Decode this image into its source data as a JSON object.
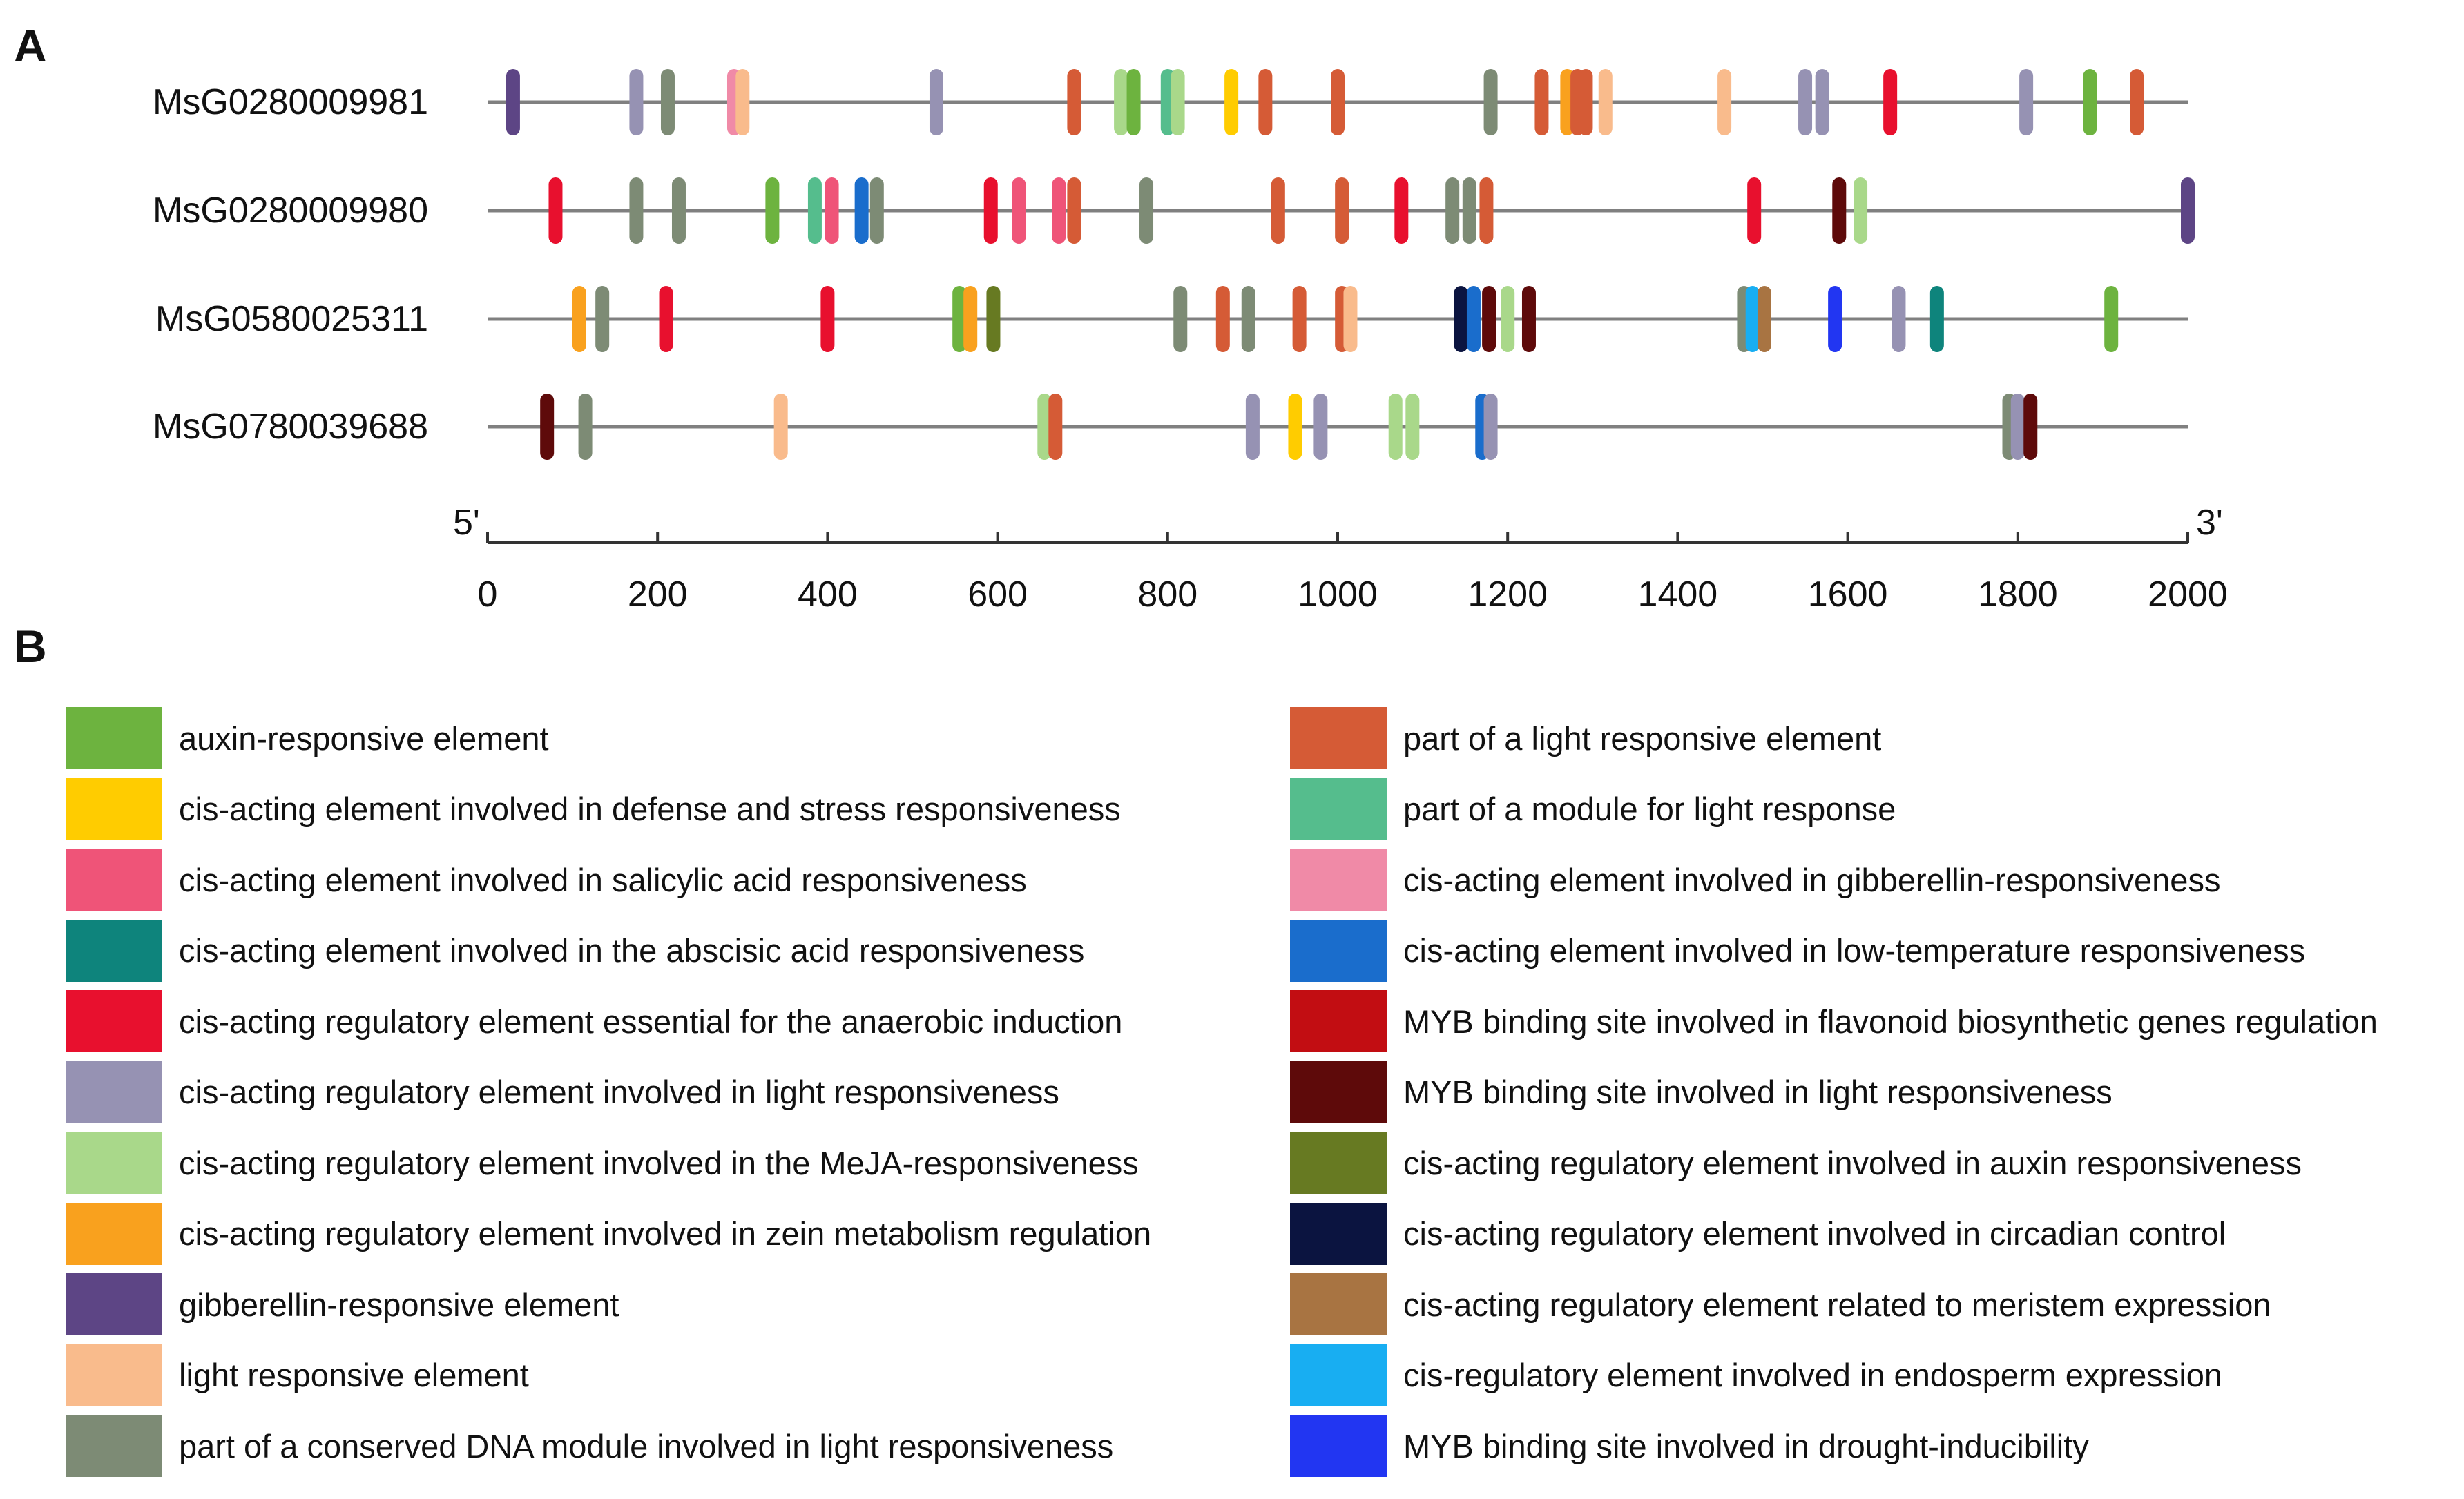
{
  "panel_a_label": "A",
  "panel_b_label": "B",
  "chart_data": {
    "type": "feature-map",
    "title": "",
    "x_axis": {
      "start_label": "5'",
      "end_label": "3'",
      "range": [
        0,
        2000
      ],
      "ticks": [
        0,
        200,
        400,
        600,
        800,
        1000,
        1200,
        1400,
        1600,
        1800,
        2000
      ]
    },
    "element_types": [
      {
        "id": "auxin",
        "label": "auxin-responsive element",
        "color": "#6db33f"
      },
      {
        "id": "defense",
        "label": "cis-acting element involved in defense and stress responsiveness",
        "color": "#ffcc00"
      },
      {
        "id": "salicylic",
        "label": "cis-acting element involved in salicylic acid responsiveness",
        "color": "#ef5478"
      },
      {
        "id": "aba",
        "label": "cis-acting element involved in the abscisic acid responsiveness",
        "color": "#0e847c"
      },
      {
        "id": "anaerobic",
        "label": "cis-acting regulatory element essential for the anaerobic induction",
        "color": "#e8102e"
      },
      {
        "id": "light_reg",
        "label": "cis-acting regulatory element involved in light responsiveness",
        "color": "#9692b3"
      },
      {
        "id": "meja",
        "label": "cis-acting regulatory element involved in the MeJA-responsiveness",
        "color": "#a9d88a"
      },
      {
        "id": "zein",
        "label": "cis-acting regulatory element involved in zein metabolism regulation",
        "color": "#f9a11e"
      },
      {
        "id": "gib_element",
        "label": "gibberellin-responsive element",
        "color": "#5d4585"
      },
      {
        "id": "light_element",
        "label": "light responsive element",
        "color": "#f9bb8c"
      },
      {
        "id": "conserved_dna",
        "label": "part of a conserved DNA module involved in light responsiveness",
        "color": "#7d8b75"
      },
      {
        "id": "part_light",
        "label": "part of a light responsive element",
        "color": "#d55b36"
      },
      {
        "id": "module_light",
        "label": "part of a module for light response",
        "color": "#55bd8d"
      },
      {
        "id": "gib_cis",
        "label": "cis-acting element involved in gibberellin-responsiveness",
        "color": "#f08aa7"
      },
      {
        "id": "lowtemp",
        "label": "cis-acting element involved in low-temperature responsiveness",
        "color": "#1a6dcc"
      },
      {
        "id": "myb_flav",
        "label": "MYB binding site involved in flavonoid biosynthetic genes regulation",
        "color": "#c20d12"
      },
      {
        "id": "myb_light",
        "label": "MYB binding site involved in light responsiveness",
        "color": "#5e0a0a"
      },
      {
        "id": "auxin_reg",
        "label": "cis-acting regulatory element involved in auxin responsiveness",
        "color": "#677a22"
      },
      {
        "id": "circadian",
        "label": "cis-acting regulatory element involved in circadian control",
        "color": "#0b1440"
      },
      {
        "id": "meristem",
        "label": "cis-acting regulatory element related to meristem expression",
        "color": "#a87442"
      },
      {
        "id": "endosperm",
        "label": "cis-regulatory element involved in endosperm expression",
        "color": "#18aef2"
      },
      {
        "id": "myb_drought",
        "label": "MYB binding site involved in drought-inducibility",
        "color": "#2236f2"
      }
    ],
    "genes": [
      {
        "name": "MsG0280009981",
        "length": 2000,
        "elements": [
          {
            "pos": 30,
            "type": "gib_element"
          },
          {
            "pos": 175,
            "type": "light_reg"
          },
          {
            "pos": 212,
            "type": "conserved_dna"
          },
          {
            "pos": 290,
            "type": "gib_cis"
          },
          {
            "pos": 300,
            "type": "light_element"
          },
          {
            "pos": 528,
            "type": "light_reg"
          },
          {
            "pos": 690,
            "type": "part_light"
          },
          {
            "pos": 745,
            "type": "meja"
          },
          {
            "pos": 760,
            "type": "auxin"
          },
          {
            "pos": 800,
            "type": "module_light"
          },
          {
            "pos": 812,
            "type": "meja"
          },
          {
            "pos": 875,
            "type": "defense"
          },
          {
            "pos": 915,
            "type": "part_light"
          },
          {
            "pos": 1000,
            "type": "part_light"
          },
          {
            "pos": 1180,
            "type": "conserved_dna"
          },
          {
            "pos": 1240,
            "type": "part_light"
          },
          {
            "pos": 1270,
            "type": "zein"
          },
          {
            "pos": 1282,
            "type": "part_light"
          },
          {
            "pos": 1292,
            "type": "part_light"
          },
          {
            "pos": 1315,
            "type": "light_element"
          },
          {
            "pos": 1455,
            "type": "light_element"
          },
          {
            "pos": 1550,
            "type": "light_reg"
          },
          {
            "pos": 1570,
            "type": "light_reg"
          },
          {
            "pos": 1650,
            "type": "anaerobic"
          },
          {
            "pos": 1810,
            "type": "light_reg"
          },
          {
            "pos": 1885,
            "type": "auxin"
          },
          {
            "pos": 1940,
            "type": "part_light"
          }
        ]
      },
      {
        "name": "MsG0280009980",
        "length": 2000,
        "elements": [
          {
            "pos": 80,
            "type": "anaerobic"
          },
          {
            "pos": 175,
            "type": "conserved_dna"
          },
          {
            "pos": 225,
            "type": "conserved_dna"
          },
          {
            "pos": 335,
            "type": "auxin"
          },
          {
            "pos": 385,
            "type": "module_light"
          },
          {
            "pos": 405,
            "type": "salicylic"
          },
          {
            "pos": 440,
            "type": "lowtemp"
          },
          {
            "pos": 458,
            "type": "conserved_dna"
          },
          {
            "pos": 592,
            "type": "anaerobic"
          },
          {
            "pos": 625,
            "type": "salicylic"
          },
          {
            "pos": 672,
            "type": "salicylic"
          },
          {
            "pos": 690,
            "type": "part_light"
          },
          {
            "pos": 775,
            "type": "conserved_dna"
          },
          {
            "pos": 930,
            "type": "part_light"
          },
          {
            "pos": 1005,
            "type": "part_light"
          },
          {
            "pos": 1075,
            "type": "anaerobic"
          },
          {
            "pos": 1135,
            "type": "conserved_dna"
          },
          {
            "pos": 1155,
            "type": "conserved_dna"
          },
          {
            "pos": 1175,
            "type": "part_light"
          },
          {
            "pos": 1490,
            "type": "anaerobic"
          },
          {
            "pos": 1590,
            "type": "myb_light"
          },
          {
            "pos": 1615,
            "type": "meja"
          },
          {
            "pos": 2000,
            "type": "gib_element"
          }
        ]
      },
      {
        "name": "MsG0580025311",
        "length": 2000,
        "elements": [
          {
            "pos": 108,
            "type": "zein"
          },
          {
            "pos": 135,
            "type": "conserved_dna"
          },
          {
            "pos": 210,
            "type": "anaerobic"
          },
          {
            "pos": 400,
            "type": "anaerobic"
          },
          {
            "pos": 555,
            "type": "auxin"
          },
          {
            "pos": 568,
            "type": "zein"
          },
          {
            "pos": 595,
            "type": "auxin_reg"
          },
          {
            "pos": 815,
            "type": "conserved_dna"
          },
          {
            "pos": 865,
            "type": "part_light"
          },
          {
            "pos": 895,
            "type": "conserved_dna"
          },
          {
            "pos": 955,
            "type": "part_light"
          },
          {
            "pos": 1005,
            "type": "part_light"
          },
          {
            "pos": 1015,
            "type": "light_element"
          },
          {
            "pos": 1145,
            "type": "circadian"
          },
          {
            "pos": 1160,
            "type": "lowtemp"
          },
          {
            "pos": 1178,
            "type": "myb_light"
          },
          {
            "pos": 1200,
            "type": "meja"
          },
          {
            "pos": 1225,
            "type": "myb_light"
          },
          {
            "pos": 1478,
            "type": "conserved_dna"
          },
          {
            "pos": 1488,
            "type": "endosperm"
          },
          {
            "pos": 1502,
            "type": "meristem"
          },
          {
            "pos": 1585,
            "type": "myb_drought"
          },
          {
            "pos": 1660,
            "type": "light_reg"
          },
          {
            "pos": 1705,
            "type": "aba"
          },
          {
            "pos": 1910,
            "type": "auxin"
          }
        ]
      },
      {
        "name": "MsG0780039688",
        "length": 2000,
        "elements": [
          {
            "pos": 70,
            "type": "myb_light"
          },
          {
            "pos": 115,
            "type": "conserved_dna"
          },
          {
            "pos": 345,
            "type": "light_element"
          },
          {
            "pos": 655,
            "type": "meja"
          },
          {
            "pos": 668,
            "type": "part_light"
          },
          {
            "pos": 900,
            "type": "light_reg"
          },
          {
            "pos": 950,
            "type": "defense"
          },
          {
            "pos": 980,
            "type": "light_reg"
          },
          {
            "pos": 1068,
            "type": "meja"
          },
          {
            "pos": 1088,
            "type": "meja"
          },
          {
            "pos": 1170,
            "type": "lowtemp"
          },
          {
            "pos": 1180,
            "type": "light_reg"
          },
          {
            "pos": 1790,
            "type": "conserved_dna"
          },
          {
            "pos": 1800,
            "type": "light_reg"
          },
          {
            "pos": 1815,
            "type": "myb_light"
          }
        ]
      }
    ]
  }
}
